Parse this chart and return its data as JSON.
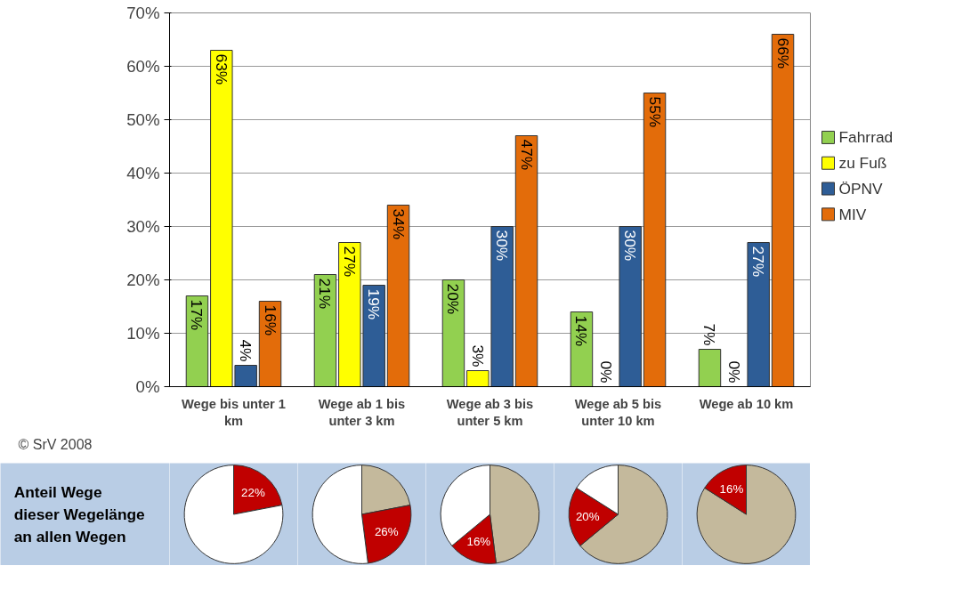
{
  "chart_data": [
    {
      "type": "bar",
      "categories": [
        "Wege bis unter 1 km",
        "Wege ab 1 bis unter 3 km",
        "Wege ab 3 bis unter 5 km",
        "Wege ab 5 bis unter 10 km",
        "Wege ab 10 km"
      ],
      "series": [
        {
          "name": "Fahrrad",
          "color": "#92d050",
          "values": [
            17,
            21,
            20,
            14,
            7
          ]
        },
        {
          "name": "zu Fuß",
          "color": "#ffff00",
          "values": [
            63,
            27,
            3,
            0,
            0
          ]
        },
        {
          "name": "ÖPNV",
          "color": "#2e5d96",
          "values": [
            4,
            19,
            30,
            30,
            27
          ]
        },
        {
          "name": "MIV",
          "color": "#e36c0a",
          "values": [
            16,
            34,
            47,
            55,
            66
          ]
        }
      ],
      "ylim": [
        0,
        70
      ],
      "yticks": [
        {
          "value": 0,
          "label": "0%"
        },
        {
          "value": 10,
          "label": "10%"
        },
        {
          "value": 20,
          "label": "20%"
        },
        {
          "value": 30,
          "label": "30%"
        },
        {
          "value": 40,
          "label": "40%"
        },
        {
          "value": 50,
          "label": "50%"
        },
        {
          "value": 60,
          "label": "60%"
        },
        {
          "value": 70,
          "label": "70%"
        }
      ],
      "value_labels": [
        [
          "17%",
          "21%",
          "20%",
          "14%",
          "7%"
        ],
        [
          "63%",
          "27%",
          "3%",
          "0%",
          "0%"
        ],
        [
          "4%",
          "19%",
          "30%",
          "30%",
          "27%"
        ],
        [
          "16%",
          "34%",
          "47%",
          "55%",
          "66%"
        ]
      ],
      "grid": "y",
      "legend": "right",
      "annotations": [
        "© SrV 2008"
      ]
    },
    {
      "type": "other",
      "annotations": [
        "Anteil Wege dieser Wegelänge an allen Wegen"
      ]
    },
    {
      "type": "pie",
      "categories": [
        null,
        null
      ],
      "values": [
        22,
        78
      ],
      "colors": [
        "#c00000",
        "#ffffff"
      ],
      "value_labels": [
        "22%",
        null
      ]
    },
    {
      "type": "pie",
      "categories": [
        null,
        null,
        null
      ],
      "values": [
        22,
        26,
        52
      ],
      "colors": [
        "#c4b99c",
        "#c00000",
        "#ffffff"
      ],
      "value_labels": [
        null,
        "26%",
        null
      ]
    },
    {
      "type": "pie",
      "categories": [
        null,
        null,
        null
      ],
      "values": [
        48,
        16,
        36
      ],
      "colors": [
        "#c4b99c",
        "#c00000",
        "#ffffff"
      ],
      "value_labels": [
        null,
        "16%",
        null
      ]
    },
    {
      "type": "pie",
      "categories": [
        null,
        null,
        null
      ],
      "values": [
        64,
        20,
        16
      ],
      "colors": [
        "#c4b99c",
        "#c00000",
        "#ffffff"
      ],
      "value_labels": [
        null,
        "20%",
        null
      ]
    },
    {
      "type": "pie",
      "categories": [
        null,
        null
      ],
      "values": [
        84,
        16
      ],
      "colors": [
        "#c4b99c",
        "#c00000"
      ],
      "value_labels": [
        null,
        "16%"
      ]
    }
  ]
}
